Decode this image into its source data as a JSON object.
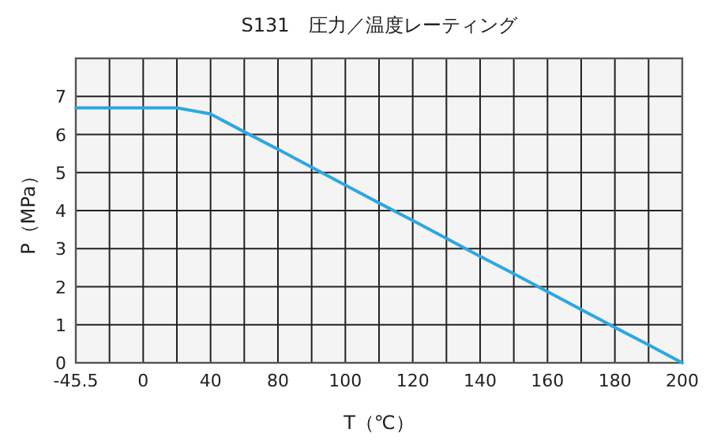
{
  "chart_data": {
    "type": "line",
    "title": "S131　圧力／温度レーティング",
    "xlabel": "T（℃）",
    "ylabel": "P（MPa）",
    "categories": [
      "-45.5",
      null,
      "0",
      null,
      "40",
      null,
      "80",
      null,
      "100",
      null,
      "120",
      null,
      "140",
      null,
      "160",
      null,
      "180",
      null,
      "200"
    ],
    "series": [
      {
        "color": "#2ea7e0",
        "values": [
          6.7,
          6.7,
          6.7,
          6.7,
          6.54,
          6.07,
          5.61,
          5.14,
          4.67,
          4.2,
          3.74,
          3.27,
          2.8,
          2.34,
          1.87,
          1.4,
          0.93,
          0.47,
          0
        ]
      }
    ],
    "ylim": [
      0,
      8
    ],
    "yticks": [
      0,
      1,
      2,
      3,
      4,
      5,
      6,
      7
    ],
    "grid": true,
    "marker": "none",
    "line_style": "solid"
  }
}
